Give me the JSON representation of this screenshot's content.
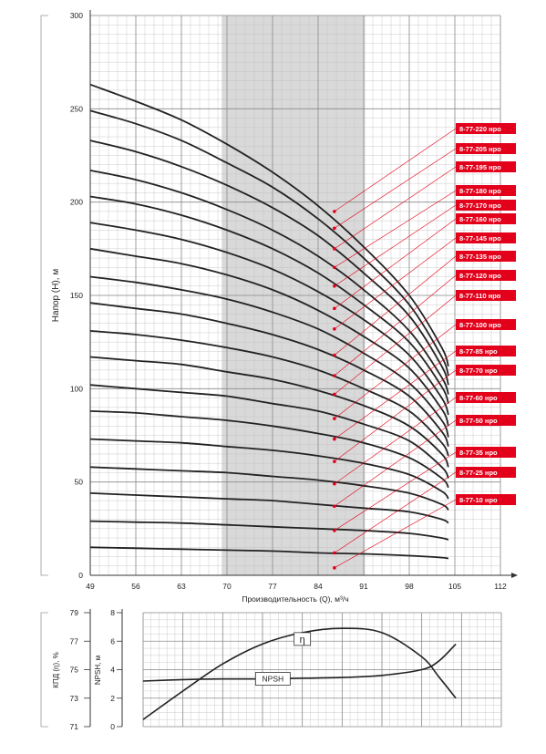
{
  "chart_data": [
    {
      "type": "line",
      "xlabel": "Производительность (Q), м³/ч",
      "ylabel": "Напор (H), м",
      "xlim": [
        49,
        112
      ],
      "ylim": [
        0,
        300
      ],
      "x_ticks": [
        "49",
        "56",
        "63",
        "70",
        "77",
        "84",
        "91",
        "98",
        "105",
        "112"
      ],
      "y_ticks": [
        "0",
        "50",
        "100",
        "150",
        "200",
        "250",
        "300"
      ],
      "grid": true,
      "shaded_band": {
        "x_range": [
          69.2,
          91.2
        ],
        "fill": "#d9d9d9"
      },
      "colors": {
        "curve": "#222222",
        "label_bg": "#e3001b",
        "label_text": "#ffffff",
        "leader": "#e3001b",
        "grid": "#bfbfbf",
        "grid_major": "#8c8c8c"
      },
      "series": [
        {
          "name": "8-77-220 нро",
          "x": [
            49,
            56,
            63,
            70,
            77,
            84,
            91,
            98,
            103,
            104
          ],
          "values": [
            263,
            254,
            244,
            231,
            216,
            198,
            176,
            150,
            122,
            112
          ]
        },
        {
          "name": "8-77-205 нро",
          "x": [
            49,
            56,
            63,
            70,
            77,
            84,
            91,
            98,
            103,
            104
          ],
          "values": [
            249,
            242,
            233,
            221,
            208,
            191,
            170,
            145,
            117,
            107
          ]
        },
        {
          "name": "8-77-195 нро",
          "x": [
            49,
            56,
            63,
            70,
            77,
            84,
            91,
            98,
            103,
            104
          ],
          "values": [
            233,
            227,
            219,
            209,
            197,
            182,
            162,
            139,
            112,
            102
          ]
        },
        {
          "name": "8-77-180 нро",
          "x": [
            49,
            56,
            63,
            70,
            77,
            84,
            91,
            98,
            103,
            104
          ],
          "values": [
            217,
            212,
            205,
            196,
            185,
            171,
            153,
            131,
            106,
            97
          ]
        },
        {
          "name": "8-77-170 нро",
          "x": [
            49,
            56,
            63,
            70,
            77,
            84,
            91,
            98,
            103,
            104
          ],
          "values": [
            203,
            199,
            193,
            185,
            175,
            162,
            145,
            125,
            101,
            92
          ]
        },
        {
          "name": "8-77-160 нро",
          "x": [
            49,
            56,
            63,
            70,
            77,
            84,
            91,
            98,
            103,
            104
          ],
          "values": [
            189,
            185,
            180,
            173,
            164,
            152,
            137,
            118,
            95,
            86
          ]
        },
        {
          "name": "8-77-145 нро",
          "x": [
            49,
            56,
            63,
            70,
            77,
            84,
            91,
            98,
            103,
            104
          ],
          "values": [
            175,
            171,
            167,
            161,
            153,
            142,
            128,
            111,
            89,
            80
          ]
        },
        {
          "name": "8-77-135 нро",
          "x": [
            49,
            56,
            63,
            70,
            77,
            84,
            91,
            98,
            103,
            104
          ],
          "values": [
            160,
            157,
            153,
            148,
            141,
            132,
            119,
            103,
            83,
            74
          ]
        },
        {
          "name": "8-77-120 нро",
          "x": [
            49,
            56,
            63,
            70,
            77,
            84,
            91,
            98,
            103,
            104
          ],
          "values": [
            146,
            143,
            140,
            135,
            129,
            121,
            110,
            96,
            77,
            69
          ]
        },
        {
          "name": "8-77-110 нро",
          "x": [
            49,
            56,
            63,
            70,
            77,
            84,
            91,
            98,
            103,
            104
          ],
          "values": [
            131,
            129,
            126,
            122,
            117,
            110,
            100,
            88,
            71,
            64
          ]
        },
        {
          "name": "8-77-100 нро",
          "x": [
            49,
            56,
            63,
            70,
            77,
            84,
            91,
            98,
            103,
            104
          ],
          "values": [
            117,
            115,
            113,
            109,
            105,
            99,
            91,
            80,
            65,
            58
          ]
        },
        {
          "name": "8-77-85 нро",
          "x": [
            49,
            56,
            63,
            70,
            77,
            84,
            91,
            98,
            103,
            104
          ],
          "values": [
            102,
            100,
            98,
            96,
            92,
            88,
            81,
            72,
            58,
            52
          ]
        },
        {
          "name": "8-77-70 нро",
          "x": [
            49,
            56,
            63,
            70,
            77,
            84,
            91,
            98,
            103,
            104
          ],
          "values": [
            88,
            87,
            85,
            83,
            80,
            76,
            71,
            63,
            52,
            47
          ]
        },
        {
          "name": "8-77-60 нро",
          "x": [
            49,
            56,
            63,
            70,
            77,
            84,
            91,
            98,
            103,
            104
          ],
          "values": [
            73,
            72,
            71,
            69,
            67,
            64,
            60,
            54,
            45,
            41
          ]
        },
        {
          "name": "8-77-50 нро",
          "x": [
            49,
            56,
            63,
            70,
            77,
            84,
            91,
            98,
            103,
            104
          ],
          "values": [
            58,
            57,
            56,
            55,
            53,
            51,
            48,
            44,
            38,
            35
          ]
        },
        {
          "name": "8-77-35 нро",
          "x": [
            49,
            56,
            63,
            70,
            77,
            84,
            91,
            98,
            103,
            104
          ],
          "values": [
            44,
            43,
            42,
            41,
            40,
            38,
            36,
            34,
            30,
            28
          ]
        },
        {
          "name": "8-77-25 нро",
          "x": [
            49,
            56,
            63,
            70,
            77,
            84,
            91,
            98,
            103,
            104
          ],
          "values": [
            29,
            28.5,
            28,
            27,
            26,
            25,
            24,
            22.5,
            20,
            19
          ]
        },
        {
          "name": "8-77-10 нро",
          "x": [
            49,
            56,
            63,
            70,
            77,
            84,
            91,
            98,
            103,
            104
          ],
          "values": [
            15,
            14.5,
            14,
            13.5,
            13,
            12,
            11.5,
            10.5,
            9.5,
            9
          ]
        }
      ],
      "duty_points": {
        "x": 86.5,
        "y": [
          195,
          186,
          175,
          165,
          155,
          143,
          132,
          118,
          107,
          97,
          84,
          73,
          61,
          49,
          37,
          24,
          12,
          4
        ]
      }
    },
    {
      "type": "line",
      "left_axis": {
        "label": "КПД (η), %",
        "ticks": [
          "71",
          "73",
          "75",
          "77",
          "79"
        ],
        "lim": [
          71,
          79
        ]
      },
      "right_axis": {
        "label": "NPSH, м",
        "ticks": [
          "0",
          "2",
          "4",
          "6",
          "8"
        ],
        "lim": [
          0,
          8
        ]
      },
      "xlim": [
        49,
        112
      ],
      "grid": true,
      "series": [
        {
          "name": "η",
          "axis": "left",
          "x": [
            49,
            56,
            63,
            70,
            77,
            84,
            91,
            98,
            101,
            104
          ],
          "values": [
            71.5,
            73.5,
            75.4,
            76.8,
            77.6,
            77.9,
            77.6,
            75.9,
            74.5,
            73
          ]
        },
        {
          "name": "NPSH",
          "axis": "right",
          "x": [
            49,
            56,
            63,
            70,
            77,
            84,
            91,
            98,
            101,
            104
          ],
          "values": [
            3.2,
            3.3,
            3.35,
            3.35,
            3.4,
            3.45,
            3.6,
            4.0,
            4.6,
            5.8
          ]
        }
      ]
    }
  ]
}
